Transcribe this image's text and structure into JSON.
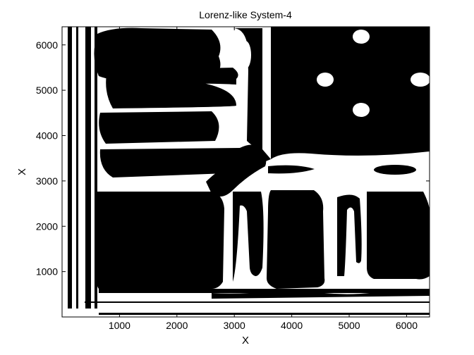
{
  "chart_data": {
    "type": "heatmap",
    "title": "Lorenz-like System-4",
    "xlabel": "X",
    "ylabel": "X",
    "xlim": [
      0,
      6400
    ],
    "ylim": [
      0,
      6400
    ],
    "x_ticks": [
      1000,
      2000,
      3000,
      4000,
      5000,
      6000
    ],
    "y_ticks": [
      1000,
      2000,
      3000,
      4000,
      5000,
      6000
    ],
    "x_tick_labels": [
      "1000",
      "2000",
      "3000",
      "4000",
      "5000",
      "6000"
    ],
    "y_tick_labels": [
      "1000",
      "2000",
      "3000",
      "4000",
      "5000",
      "6000"
    ],
    "grid": false,
    "colors": {
      "recurrence": "#000000",
      "background": "#ffffff"
    },
    "description_type": "recurrence plot (binary black/white), symmetric about the diagonal"
  }
}
